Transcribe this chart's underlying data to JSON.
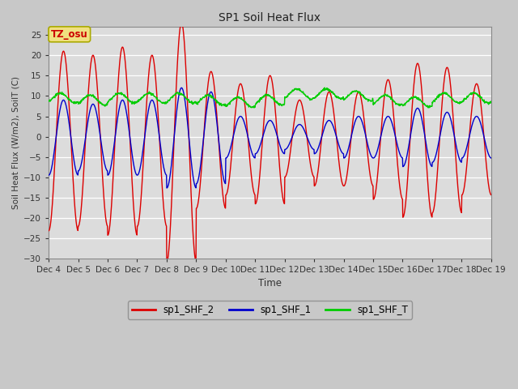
{
  "title": "SP1 Soil Heat Flux",
  "xlabel": "Time",
  "ylabel": "Soil Heat Flux (W/m2), SoilT (C)",
  "ylim": [
    -30,
    27
  ],
  "yticks": [
    -30,
    -25,
    -20,
    -15,
    -10,
    -5,
    0,
    5,
    10,
    15,
    20,
    25
  ],
  "bg_color": "#c8c8c8",
  "plot_bg_color": "#dcdcdc",
  "grid_color": "#ffffff",
  "tz_label": "TZ_osu",
  "tz_label_color": "#cc0000",
  "tz_box_color": "#f0e080",
  "tz_box_edge": "#aaaa00",
  "series": {
    "sp1_SHF_2": {
      "color": "#dd0000",
      "linewidth": 1.0
    },
    "sp1_SHF_1": {
      "color": "#0000cc",
      "linewidth": 1.0
    },
    "sp1_SHF_T": {
      "color": "#00cc00",
      "linewidth": 1.0
    }
  },
  "n_days": 15,
  "start_day": 4,
  "points_per_day": 96,
  "day_amps_red": [
    21,
    20,
    22,
    20,
    28,
    16,
    13,
    15,
    9,
    11,
    11,
    14,
    18,
    17,
    13
  ],
  "day_amps_blue": [
    9,
    8,
    9,
    9,
    12,
    11,
    5,
    4,
    3,
    4,
    5,
    5,
    7,
    6,
    5
  ],
  "day_base_green": [
    9.5,
    9.0,
    9.5,
    9.5,
    9.5,
    9.0,
    8.5,
    9.0,
    10.5,
    10.5,
    10.0,
    9.0,
    8.5,
    9.5,
    9.5
  ]
}
